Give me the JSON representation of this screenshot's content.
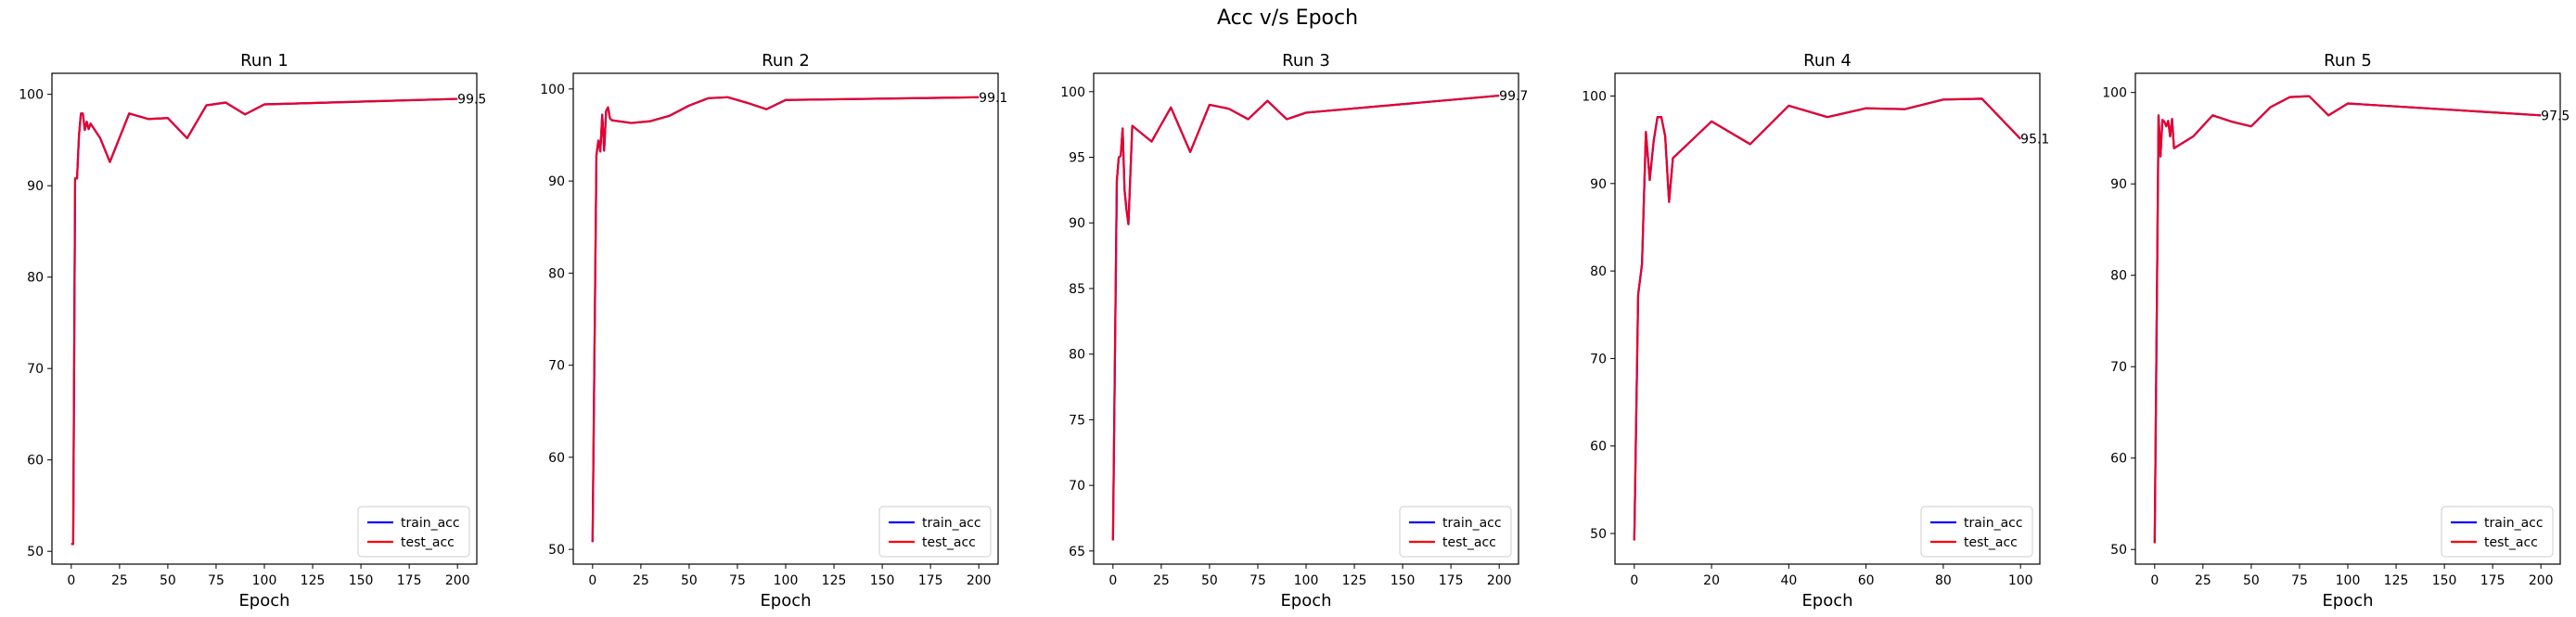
{
  "suptitle": "Acc v/s Epoch",
  "colors": {
    "train": "#0000ff",
    "test": "#ff0000",
    "overlap": "#e8002a"
  },
  "chart_data": [
    {
      "type": "line",
      "title": "Run 1",
      "xlabel": "Epoch",
      "ylabel": "",
      "xlim": [
        -10,
        210
      ],
      "ylim": [
        48.6,
        102.3
      ],
      "xticks": [
        0,
        25,
        50,
        75,
        100,
        125,
        150,
        175,
        200
      ],
      "yticks": [
        50,
        60,
        70,
        80,
        90,
        100
      ],
      "legend": {
        "placement": "lower-right",
        "entries": [
          "train_acc",
          "test_acc"
        ]
      },
      "grid": false,
      "end_label": "99.5",
      "series": [
        {
          "name": "train_acc",
          "x": [
            0,
            1,
            2,
            3,
            4,
            5,
            6,
            7,
            8,
            9,
            10,
            15,
            20,
            30,
            40,
            50,
            60,
            70,
            80,
            90,
            100,
            200
          ],
          "y": [
            50.8,
            50.8,
            90.8,
            90.8,
            95.5,
            97.9,
            97.9,
            96.1,
            97.0,
            96.2,
            96.8,
            95.2,
            92.6,
            97.9,
            97.3,
            97.4,
            95.2,
            98.8,
            99.1,
            97.8,
            98.9,
            99.5
          ]
        },
        {
          "name": "test_acc",
          "x": [
            0,
            1,
            2,
            3,
            4,
            5,
            6,
            7,
            8,
            9,
            10,
            15,
            20,
            30,
            40,
            50,
            60,
            70,
            80,
            90,
            100,
            200
          ],
          "y": [
            50.8,
            50.8,
            90.8,
            90.8,
            95.5,
            97.9,
            97.9,
            96.1,
            97.0,
            96.2,
            96.8,
            95.2,
            92.6,
            97.9,
            97.3,
            97.4,
            95.2,
            98.8,
            99.1,
            97.8,
            98.9,
            99.5
          ]
        }
      ]
    },
    {
      "type": "line",
      "title": "Run 2",
      "xlabel": "Epoch",
      "ylabel": "",
      "xlim": [
        -10,
        210
      ],
      "ylim": [
        48.4,
        101.7
      ],
      "xticks": [
        0,
        25,
        50,
        75,
        100,
        125,
        150,
        175,
        200
      ],
      "yticks": [
        50,
        60,
        70,
        80,
        90,
        100
      ],
      "legend": {
        "placement": "lower-right",
        "entries": [
          "train_acc",
          "test_acc"
        ]
      },
      "grid": false,
      "end_label": "99.1",
      "series": [
        {
          "name": "train_acc",
          "x": [
            0,
            2,
            3,
            4,
            5,
            6,
            7,
            8,
            9,
            10,
            20,
            30,
            40,
            50,
            60,
            70,
            80,
            90,
            100,
            200
          ],
          "y": [
            50.8,
            92.8,
            94.4,
            93.2,
            97.2,
            93.3,
            97.6,
            98.0,
            96.8,
            96.6,
            96.3,
            96.5,
            97.1,
            98.2,
            99.0,
            99.1,
            98.5,
            97.8,
            98.8,
            99.1
          ]
        },
        {
          "name": "test_acc",
          "x": [
            0,
            2,
            3,
            4,
            5,
            6,
            7,
            8,
            9,
            10,
            20,
            30,
            40,
            50,
            60,
            70,
            80,
            90,
            100,
            200
          ],
          "y": [
            50.8,
            92.8,
            94.4,
            93.2,
            97.2,
            93.3,
            97.6,
            98.0,
            96.8,
            96.6,
            96.3,
            96.5,
            97.1,
            98.2,
            99.0,
            99.1,
            98.5,
            97.8,
            98.8,
            99.1
          ]
        }
      ]
    },
    {
      "type": "line",
      "title": "Run 3",
      "xlabel": "Epoch",
      "ylabel": "",
      "xlim": [
        -10,
        210
      ],
      "ylim": [
        64.0,
        101.4
      ],
      "xticks": [
        0,
        25,
        50,
        75,
        100,
        125,
        150,
        175,
        200
      ],
      "yticks": [
        65,
        70,
        75,
        80,
        85,
        90,
        95,
        100
      ],
      "legend": {
        "placement": "lower-right",
        "entries": [
          "train_acc",
          "test_acc"
        ]
      },
      "grid": false,
      "end_label": "99.7",
      "series": [
        {
          "name": "train_acc",
          "x": [
            0,
            2,
            3,
            4,
            5,
            6,
            7,
            8,
            10,
            20,
            30,
            40,
            50,
            60,
            70,
            80,
            90,
            100,
            200
          ],
          "y": [
            65.8,
            93.2,
            95.0,
            95.1,
            97.2,
            92.5,
            91.0,
            89.9,
            97.4,
            96.2,
            98.8,
            95.4,
            99.0,
            98.7,
            97.9,
            99.3,
            97.9,
            98.4,
            99.7
          ]
        },
        {
          "name": "test_acc",
          "x": [
            0,
            2,
            3,
            4,
            5,
            6,
            7,
            8,
            10,
            20,
            30,
            40,
            50,
            60,
            70,
            80,
            90,
            100,
            200
          ],
          "y": [
            65.8,
            93.2,
            95.0,
            95.1,
            97.2,
            92.5,
            91.0,
            89.9,
            97.4,
            96.2,
            98.8,
            95.4,
            99.0,
            98.7,
            97.9,
            99.3,
            97.9,
            98.4,
            99.7
          ]
        }
      ]
    },
    {
      "type": "line",
      "title": "Run 4",
      "xlabel": "Epoch",
      "ylabel": "",
      "xlim": [
        -5,
        105
      ],
      "ylim": [
        46.5,
        102.6
      ],
      "xticks": [
        0,
        20,
        40,
        60,
        80,
        100
      ],
      "yticks": [
        50,
        60,
        70,
        80,
        90,
        100
      ],
      "legend": {
        "placement": "lower-right",
        "entries": [
          "train_acc",
          "test_acc"
        ]
      },
      "grid": false,
      "end_label": "95.1",
      "series": [
        {
          "name": "train_acc",
          "x": [
            0,
            1,
            2,
            3,
            4,
            5,
            6,
            7,
            8,
            9,
            10,
            20,
            30,
            40,
            50,
            60,
            70,
            80,
            90,
            100
          ],
          "y": [
            49.2,
            77.3,
            80.8,
            95.9,
            90.4,
            94.8,
            97.6,
            97.6,
            95.4,
            87.9,
            92.9,
            97.1,
            94.5,
            98.9,
            97.6,
            98.6,
            98.5,
            99.6,
            99.7,
            95.1
          ]
        },
        {
          "name": "test_acc",
          "x": [
            0,
            1,
            2,
            3,
            4,
            5,
            6,
            7,
            8,
            9,
            10,
            20,
            30,
            40,
            50,
            60,
            70,
            80,
            90,
            100
          ],
          "y": [
            49.2,
            77.3,
            80.8,
            95.9,
            90.4,
            94.8,
            97.6,
            97.6,
            95.4,
            87.9,
            92.9,
            97.1,
            94.5,
            98.9,
            97.6,
            98.6,
            98.5,
            99.6,
            99.7,
            95.1
          ]
        }
      ]
    },
    {
      "type": "line",
      "title": "Run 5",
      "xlabel": "Epoch",
      "ylabel": "",
      "xlim": [
        -10,
        210
      ],
      "ylim": [
        48.4,
        102.1
      ],
      "xticks": [
        0,
        25,
        50,
        75,
        100,
        125,
        150,
        175,
        200
      ],
      "yticks": [
        50,
        60,
        70,
        80,
        90,
        100
      ],
      "legend": {
        "placement": "lower-right",
        "entries": [
          "train_acc",
          "test_acc"
        ]
      },
      "grid": false,
      "end_label": "97.5",
      "series": [
        {
          "name": "train_acc",
          "x": [
            0,
            2,
            3,
            4,
            5,
            6,
            7,
            8,
            9,
            10,
            20,
            30,
            40,
            50,
            60,
            70,
            80,
            90,
            100,
            200
          ],
          "y": [
            50.7,
            97.5,
            93.0,
            97.0,
            96.8,
            96.3,
            96.9,
            95.2,
            97.1,
            93.9,
            95.2,
            97.5,
            96.8,
            96.3,
            98.4,
            99.5,
            99.6,
            97.5,
            98.8,
            97.5
          ]
        },
        {
          "name": "test_acc",
          "x": [
            0,
            2,
            3,
            4,
            5,
            6,
            7,
            8,
            9,
            10,
            20,
            30,
            40,
            50,
            60,
            70,
            80,
            90,
            100,
            200
          ],
          "y": [
            50.7,
            97.5,
            93.0,
            97.0,
            96.8,
            96.3,
            96.9,
            95.2,
            97.1,
            93.9,
            95.2,
            97.5,
            96.8,
            96.3,
            98.4,
            99.5,
            99.6,
            97.5,
            98.8,
            97.5
          ]
        }
      ]
    }
  ]
}
